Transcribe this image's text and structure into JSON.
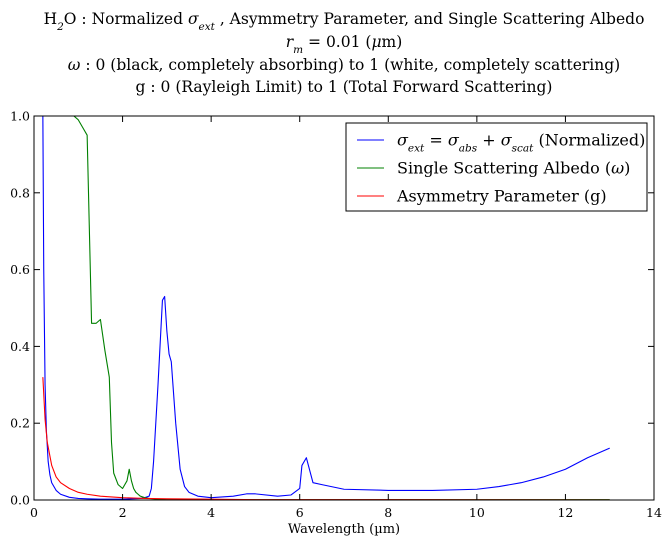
{
  "chart_data": {
    "type": "line",
    "title_lines": [
      {
        "parts": [
          {
            "t": "H"
          },
          {
            "t": "2",
            "sub": true
          },
          {
            "t": "O : Normalized "
          },
          {
            "t": "σ",
            "i": true
          },
          {
            "t": "ext",
            "sub": true
          },
          {
            "t": " , Asymmetry Parameter, and Single Scattering Albedo"
          }
        ]
      },
      {
        "parts": [
          {
            "t": "r",
            "i": true
          },
          {
            "t": "m",
            "sub": true
          },
          {
            "t": " = 0.01 ("
          },
          {
            "t": "μ",
            "i": true
          },
          {
            "t": "m)"
          }
        ]
      },
      {
        "parts": [
          {
            "t": "ω",
            "i": true
          },
          {
            "t": " : 0 (black, completely absorbing) to 1 (white, completely scattering)"
          }
        ]
      },
      {
        "parts": [
          {
            "t": "g : 0 (Rayleigh Limit) to 1 (Total Forward Scattering)"
          }
        ]
      }
    ],
    "xlabel": "Wavelength (µm)",
    "ylabel": "",
    "xlim": [
      0,
      14
    ],
    "ylim": [
      0,
      1.0
    ],
    "x_ticks": [
      0,
      2,
      4,
      6,
      8,
      10,
      12,
      14
    ],
    "y_ticks": [
      0.0,
      0.2,
      0.4,
      0.6,
      0.8,
      1.0
    ],
    "x_tick_labels": [
      "0",
      "2",
      "4",
      "6",
      "8",
      "10",
      "12",
      "14"
    ],
    "y_tick_labels": [
      "0.0",
      "0.2",
      "0.4",
      "0.6",
      "0.8",
      "1.0"
    ],
    "grid": false,
    "legend_position": "top-right",
    "series": [
      {
        "key": "sigma",
        "color": "#0000ff",
        "legend_parts": [
          {
            "t": "σ",
            "i": true
          },
          {
            "t": "ext",
            "sub": true
          },
          {
            "t": " = "
          },
          {
            "t": "σ",
            "i": true
          },
          {
            "t": "abs",
            "sub": true
          },
          {
            "t": " + "
          },
          {
            "t": "σ",
            "i": true
          },
          {
            "t": "scat",
            "sub": true
          },
          {
            "t": " (Normalized)"
          }
        ],
        "x": [
          0.2,
          0.22,
          0.25,
          0.28,
          0.32,
          0.36,
          0.4,
          0.5,
          0.6,
          0.8,
          1.0,
          1.2,
          1.5,
          2.0,
          2.2,
          2.4,
          2.5,
          2.6,
          2.65,
          2.7,
          2.8,
          2.9,
          2.95,
          3.0,
          3.05,
          3.1,
          3.2,
          3.3,
          3.4,
          3.5,
          3.7,
          4.0,
          4.5,
          4.8,
          5.0,
          5.5,
          5.8,
          6.0,
          6.05,
          6.1,
          6.15,
          6.3,
          6.5,
          7.0,
          8.0,
          9.0,
          10.0,
          10.5,
          11.0,
          11.5,
          12.0,
          12.5,
          13.0
        ],
        "y": [
          1.0,
          0.6,
          0.3,
          0.18,
          0.1,
          0.065,
          0.045,
          0.025,
          0.015,
          0.007,
          0.004,
          0.003,
          0.002,
          0.002,
          0.003,
          0.004,
          0.006,
          0.01,
          0.03,
          0.1,
          0.3,
          0.52,
          0.53,
          0.44,
          0.38,
          0.36,
          0.2,
          0.08,
          0.035,
          0.02,
          0.01,
          0.006,
          0.01,
          0.016,
          0.016,
          0.01,
          0.013,
          0.03,
          0.09,
          0.1,
          0.11,
          0.045,
          0.04,
          0.028,
          0.025,
          0.025,
          0.028,
          0.035,
          0.045,
          0.06,
          0.08,
          0.11,
          0.135
        ]
      },
      {
        "key": "albedo",
        "color": "#008000",
        "legend_parts": [
          {
            "t": "Single Scattering Albedo ("
          },
          {
            "t": "ω",
            "i": true
          },
          {
            "t": ")"
          }
        ],
        "x": [
          0.9,
          1.0,
          1.1,
          1.2,
          1.3,
          1.4,
          1.5,
          1.6,
          1.7,
          1.75,
          1.8,
          1.9,
          2.0,
          2.1,
          2.15,
          2.2,
          2.25,
          2.3,
          2.35,
          2.4,
          2.5,
          2.6,
          2.7,
          2.8,
          3.0,
          3.5,
          4.0,
          5.0,
          6.0,
          8.0,
          10.0,
          13.0
        ],
        "y": [
          1.0,
          0.99,
          0.97,
          0.95,
          0.46,
          0.46,
          0.47,
          0.39,
          0.32,
          0.15,
          0.07,
          0.04,
          0.03,
          0.05,
          0.08,
          0.05,
          0.03,
          0.02,
          0.015,
          0.01,
          0.006,
          0.004,
          0.003,
          0.002,
          0.001,
          0.001,
          0.001,
          0.001,
          0.001,
          0.001,
          0.001,
          0.001
        ]
      },
      {
        "key": "asym",
        "color": "#ff0000",
        "legend_parts": [
          {
            "t": "Asymmetry Parameter (g)"
          }
        ],
        "x": [
          0.2,
          0.25,
          0.3,
          0.4,
          0.5,
          0.6,
          0.8,
          1.0,
          1.2,
          1.5,
          2.0,
          2.5,
          3.0,
          4.0,
          5.0,
          6.0,
          8.0,
          10.0,
          13.0
        ],
        "y": [
          0.32,
          0.21,
          0.15,
          0.09,
          0.06,
          0.045,
          0.03,
          0.02,
          0.015,
          0.01,
          0.006,
          0.004,
          0.003,
          0.002,
          0.001,
          0.001,
          0.001,
          0.0005,
          0.0003
        ]
      }
    ]
  }
}
